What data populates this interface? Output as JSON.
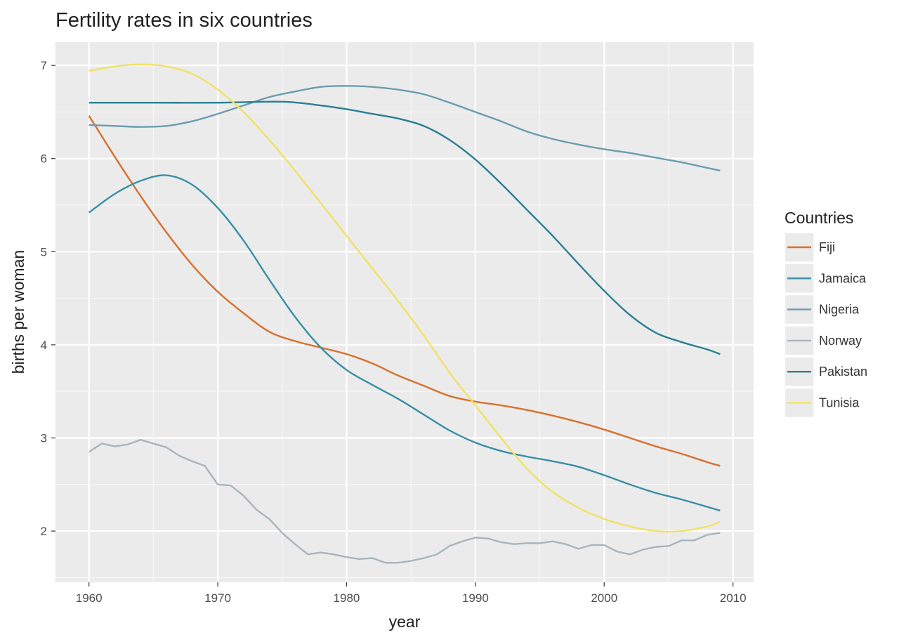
{
  "chart_data": {
    "type": "line",
    "title": "Fertility rates in six countries",
    "xlabel": "year",
    "ylabel": "births per woman",
    "xlim": [
      1957.4,
      2011.6
    ],
    "ylim": [
      1.45,
      7.25
    ],
    "x_ticks": [
      1960,
      1970,
      1980,
      1990,
      2000,
      2010
    ],
    "y_ticks": [
      2,
      3,
      4,
      5,
      6,
      7
    ],
    "grid": true,
    "legend": {
      "title": "Countries",
      "position": "right"
    },
    "series": [
      {
        "name": "Fiji",
        "color": "#d8702d",
        "points": [
          [
            1960,
            6.46
          ],
          [
            1962,
            6.02
          ],
          [
            1964,
            5.6
          ],
          [
            1966,
            5.21
          ],
          [
            1968,
            4.86
          ],
          [
            1970,
            4.57
          ],
          [
            1972,
            4.34
          ],
          [
            1974,
            4.14
          ],
          [
            1976,
            4.04
          ],
          [
            1978,
            3.97
          ],
          [
            1980,
            3.9
          ],
          [
            1982,
            3.8
          ],
          [
            1984,
            3.67
          ],
          [
            1986,
            3.56
          ],
          [
            1988,
            3.45
          ],
          [
            1990,
            3.39
          ],
          [
            1992,
            3.35
          ],
          [
            1994,
            3.3
          ],
          [
            1996,
            3.24
          ],
          [
            1998,
            3.17
          ],
          [
            2000,
            3.09
          ],
          [
            2002,
            3.0
          ],
          [
            2004,
            2.91
          ],
          [
            2006,
            2.83
          ],
          [
            2008,
            2.74
          ],
          [
            2009,
            2.7
          ]
        ]
      },
      {
        "name": "Jamaica",
        "color": "#3a8fa5",
        "points": [
          [
            1960,
            5.42
          ],
          [
            1962,
            5.62
          ],
          [
            1964,
            5.76
          ],
          [
            1966,
            5.82
          ],
          [
            1968,
            5.72
          ],
          [
            1970,
            5.47
          ],
          [
            1972,
            5.12
          ],
          [
            1974,
            4.7
          ],
          [
            1976,
            4.3
          ],
          [
            1978,
            3.97
          ],
          [
            1980,
            3.73
          ],
          [
            1982,
            3.57
          ],
          [
            1984,
            3.42
          ],
          [
            1986,
            3.25
          ],
          [
            1988,
            3.08
          ],
          [
            1990,
            2.95
          ],
          [
            1992,
            2.86
          ],
          [
            1994,
            2.8
          ],
          [
            1996,
            2.75
          ],
          [
            1998,
            2.69
          ],
          [
            2000,
            2.6
          ],
          [
            2002,
            2.5
          ],
          [
            2004,
            2.41
          ],
          [
            2006,
            2.34
          ],
          [
            2008,
            2.26
          ],
          [
            2009,
            2.22
          ]
        ]
      },
      {
        "name": "Nigeria",
        "color": "#6c9cb0",
        "points": [
          [
            1960,
            6.36
          ],
          [
            1962,
            6.35
          ],
          [
            1964,
            6.34
          ],
          [
            1966,
            6.35
          ],
          [
            1968,
            6.4
          ],
          [
            1970,
            6.48
          ],
          [
            1972,
            6.57
          ],
          [
            1974,
            6.66
          ],
          [
            1976,
            6.72
          ],
          [
            1978,
            6.77
          ],
          [
            1980,
            6.78
          ],
          [
            1982,
            6.77
          ],
          [
            1984,
            6.74
          ],
          [
            1986,
            6.69
          ],
          [
            1988,
            6.6
          ],
          [
            1990,
            6.5
          ],
          [
            1992,
            6.4
          ],
          [
            1994,
            6.29
          ],
          [
            1996,
            6.21
          ],
          [
            1998,
            6.15
          ],
          [
            2000,
            6.1
          ],
          [
            2002,
            6.06
          ],
          [
            2004,
            6.01
          ],
          [
            2006,
            5.96
          ],
          [
            2008,
            5.9
          ],
          [
            2009,
            5.87
          ]
        ]
      },
      {
        "name": "Norway",
        "color": "#a8b5bc",
        "points": [
          [
            1960,
            2.85
          ],
          [
            1961,
            2.94
          ],
          [
            1962,
            2.91
          ],
          [
            1963,
            2.93
          ],
          [
            1964,
            2.98
          ],
          [
            1965,
            2.94
          ],
          [
            1966,
            2.9
          ],
          [
            1967,
            2.81
          ],
          [
            1968,
            2.75
          ],
          [
            1969,
            2.7
          ],
          [
            1970,
            2.5
          ],
          [
            1971,
            2.49
          ],
          [
            1972,
            2.38
          ],
          [
            1973,
            2.23
          ],
          [
            1974,
            2.13
          ],
          [
            1975,
            1.98
          ],
          [
            1976,
            1.86
          ],
          [
            1977,
            1.75
          ],
          [
            1978,
            1.77
          ],
          [
            1979,
            1.75
          ],
          [
            1980,
            1.72
          ],
          [
            1981,
            1.7
          ],
          [
            1982,
            1.71
          ],
          [
            1983,
            1.66
          ],
          [
            1984,
            1.66
          ],
          [
            1985,
            1.68
          ],
          [
            1986,
            1.71
          ],
          [
            1987,
            1.75
          ],
          [
            1988,
            1.84
          ],
          [
            1989,
            1.89
          ],
          [
            1990,
            1.93
          ],
          [
            1991,
            1.92
          ],
          [
            1992,
            1.88
          ],
          [
            1993,
            1.86
          ],
          [
            1994,
            1.87
          ],
          [
            1995,
            1.87
          ],
          [
            1996,
            1.89
          ],
          [
            1997,
            1.86
          ],
          [
            1998,
            1.81
          ],
          [
            1999,
            1.85
          ],
          [
            2000,
            1.85
          ],
          [
            2001,
            1.78
          ],
          [
            2002,
            1.75
          ],
          [
            2003,
            1.8
          ],
          [
            2004,
            1.83
          ],
          [
            2005,
            1.84
          ],
          [
            2006,
            1.9
          ],
          [
            2007,
            1.9
          ],
          [
            2008,
            1.96
          ],
          [
            2009,
            1.98
          ]
        ]
      },
      {
        "name": "Pakistan",
        "color": "#2a7f94",
        "points": [
          [
            1960,
            6.6
          ],
          [
            1965,
            6.6
          ],
          [
            1970,
            6.6
          ],
          [
            1975,
            6.61
          ],
          [
            1978,
            6.57
          ],
          [
            1980,
            6.53
          ],
          [
            1982,
            6.48
          ],
          [
            1984,
            6.43
          ],
          [
            1986,
            6.35
          ],
          [
            1988,
            6.2
          ],
          [
            1990,
            5.99
          ],
          [
            1992,
            5.73
          ],
          [
            1994,
            5.45
          ],
          [
            1996,
            5.17
          ],
          [
            1998,
            4.87
          ],
          [
            2000,
            4.58
          ],
          [
            2002,
            4.32
          ],
          [
            2004,
            4.13
          ],
          [
            2006,
            4.03
          ],
          [
            2008,
            3.95
          ],
          [
            2009,
            3.9
          ]
        ]
      },
      {
        "name": "Tunisia",
        "color": "#f1e264",
        "points": [
          [
            1960,
            6.94
          ],
          [
            1962,
            6.99
          ],
          [
            1964,
            7.01
          ],
          [
            1966,
            6.99
          ],
          [
            1968,
            6.91
          ],
          [
            1970,
            6.74
          ],
          [
            1972,
            6.5
          ],
          [
            1974,
            6.2
          ],
          [
            1976,
            5.87
          ],
          [
            1978,
            5.52
          ],
          [
            1980,
            5.17
          ],
          [
            1982,
            4.82
          ],
          [
            1984,
            4.47
          ],
          [
            1986,
            4.1
          ],
          [
            1988,
            3.7
          ],
          [
            1990,
            3.35
          ],
          [
            1992,
            3.0
          ],
          [
            1994,
            2.67
          ],
          [
            1996,
            2.42
          ],
          [
            1998,
            2.25
          ],
          [
            2000,
            2.13
          ],
          [
            2002,
            2.05
          ],
          [
            2004,
            2.0
          ],
          [
            2006,
            2.0
          ],
          [
            2008,
            2.05
          ],
          [
            2009,
            2.1
          ]
        ]
      }
    ]
  }
}
